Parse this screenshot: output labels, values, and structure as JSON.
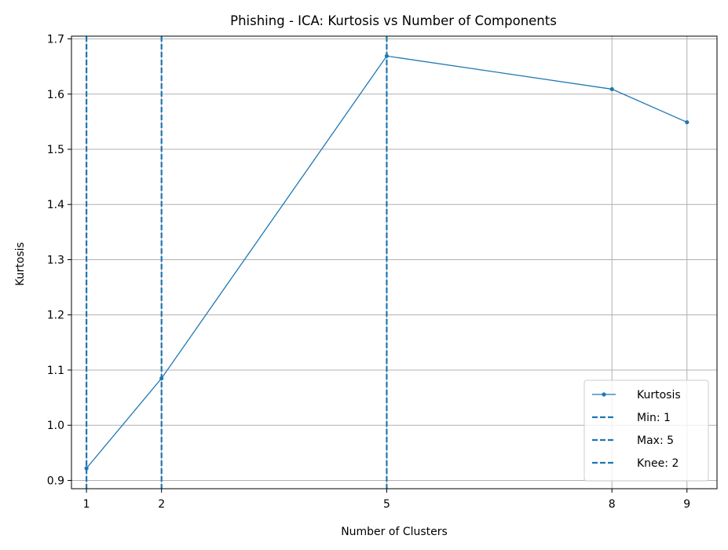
{
  "chart_data": {
    "type": "line",
    "title": "Phishing - ICA: Kurtosis vs Number of Components",
    "xlabel": "Number of Clusters",
    "ylabel": "Kurtosis",
    "x": [
      1,
      2,
      5,
      8,
      9
    ],
    "x_ticks": [
      "1",
      "2",
      "5",
      "8",
      "9"
    ],
    "xlim": [
      0.8,
      9.4
    ],
    "ylim": [
      0.885,
      1.705
    ],
    "y_ticks": [
      "0.9",
      "1.0",
      "1.1",
      "1.2",
      "1.3",
      "1.4",
      "1.5",
      "1.6",
      "1.7"
    ],
    "grid": true,
    "legend_position": "lower-right",
    "series": [
      {
        "name": "Kurtosis",
        "values": [
          0.922,
          1.085,
          1.669,
          1.609,
          1.549
        ],
        "color": "#1f77b4"
      }
    ],
    "vlines": [
      {
        "label": "Min: 1",
        "x": 1,
        "color": "#1f77b4"
      },
      {
        "label": "Max: 5",
        "x": 5,
        "color": "#1f77b4"
      },
      {
        "label": "Knee: 2",
        "x": 2,
        "color": "#1f77b4"
      }
    ]
  }
}
